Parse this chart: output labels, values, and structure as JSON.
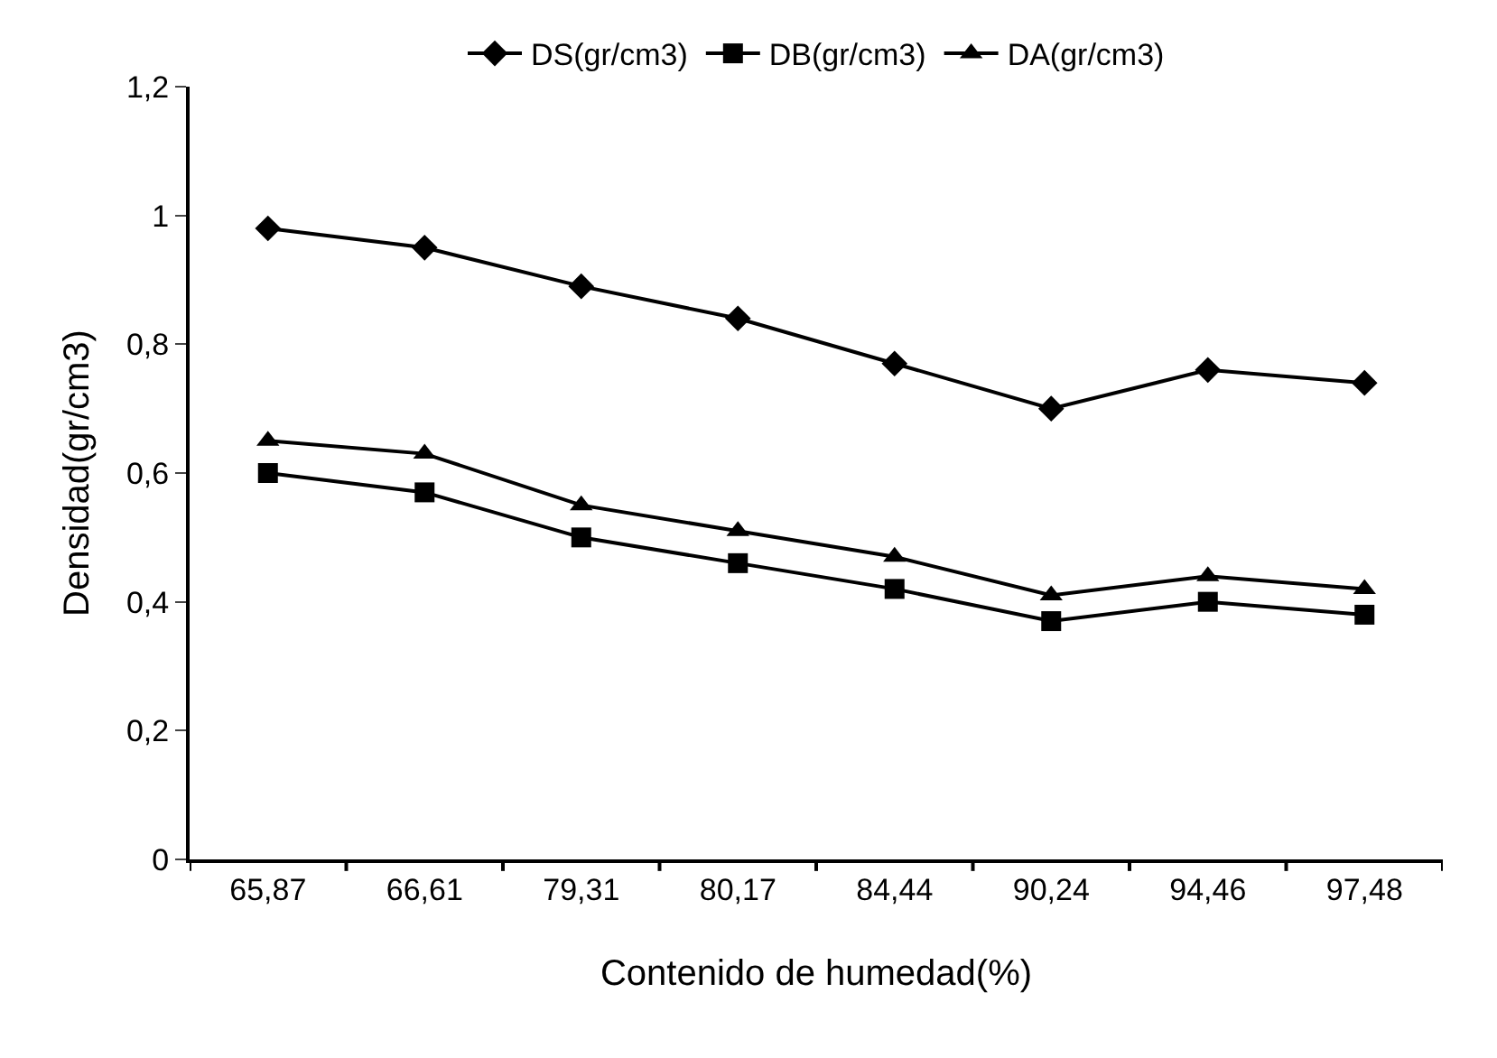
{
  "chart_data": {
    "type": "line",
    "xlabel": "Contenido de humedad(%)",
    "ylabel": "Densidad(gr/cm3)",
    "categories": [
      "65,87",
      "66,61",
      "79,31",
      "80,17",
      "84,44",
      "90,24",
      "94,46",
      "97,48"
    ],
    "series": [
      {
        "name": "DS(gr/cm3)",
        "color": "#000000",
        "marker": "diamond",
        "values": [
          0.98,
          0.95,
          0.89,
          0.84,
          0.77,
          0.7,
          0.76,
          0.74
        ]
      },
      {
        "name": "DB(gr/cm3)",
        "color": "#000000",
        "marker": "square",
        "values": [
          0.6,
          0.57,
          0.5,
          0.46,
          0.42,
          0.37,
          0.4,
          0.38
        ]
      },
      {
        "name": "DA(gr/cm3)",
        "color": "#000000",
        "marker": "triangle",
        "values": [
          0.65,
          0.63,
          0.55,
          0.51,
          0.47,
          0.41,
          0.44,
          0.42
        ]
      }
    ],
    "ylim": [
      0,
      1.2
    ],
    "yticks": [
      0,
      {
        "value": 0.2,
        "label": "0,2"
      },
      {
        "value": 0.4,
        "label": "0,4"
      },
      {
        "value": 0.6,
        "label": "0,6"
      },
      {
        "value": 0.8,
        "label": "0,8"
      },
      1,
      {
        "value": 1.2,
        "label": "1,2"
      }
    ],
    "grid": false,
    "legend": "top",
    "line_style": "solid"
  }
}
